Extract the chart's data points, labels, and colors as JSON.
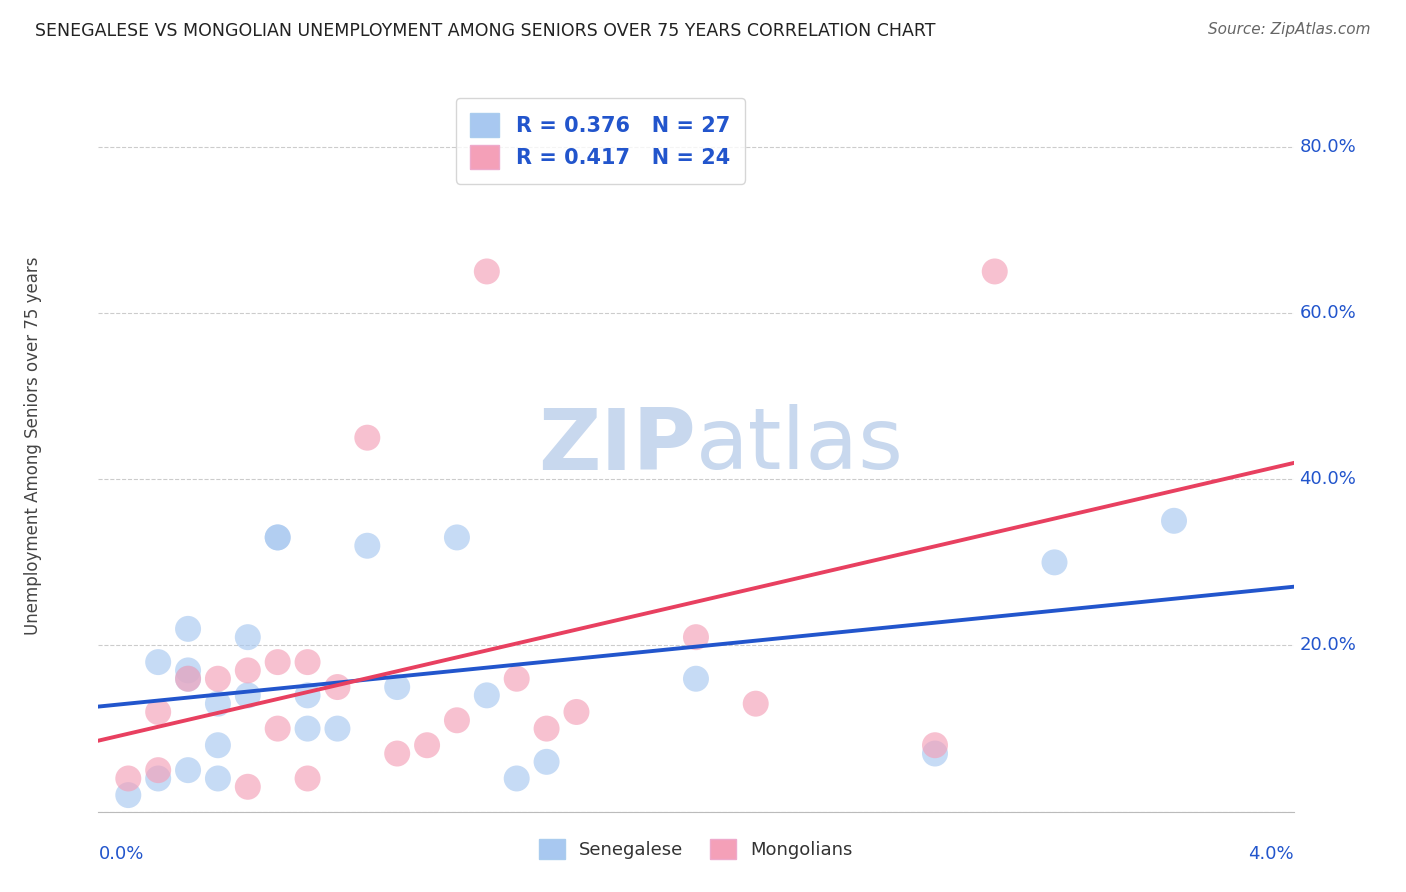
{
  "title": "SENEGALESE VS MONGOLIAN UNEMPLOYMENT AMONG SENIORS OVER 75 YEARS CORRELATION CHART",
  "source": "Source: ZipAtlas.com",
  "ylabel": "Unemployment Among Seniors over 75 years",
  "y_ticks": [
    0.0,
    0.2,
    0.4,
    0.6,
    0.8
  ],
  "y_tick_labels": [
    "",
    "20.0%",
    "40.0%",
    "60.0%",
    "80.0%"
  ],
  "x_range": [
    0.0,
    0.04
  ],
  "y_range": [
    0.0,
    0.88
  ],
  "senegalese_R": 0.376,
  "senegalese_N": 27,
  "mongolian_R": 0.417,
  "mongolian_N": 24,
  "senegalese_color": "#a8c8f0",
  "mongolian_color": "#f4a0b8",
  "senegalese_line_color": "#2255cc",
  "mongolian_line_color": "#e84060",
  "watermark_zip_color": "#c8d8ee",
  "watermark_atlas_color": "#c8d8ee",
  "legend_color": "#2255cc",
  "senegalese_x": [
    0.001,
    0.002,
    0.002,
    0.003,
    0.003,
    0.003,
    0.003,
    0.004,
    0.004,
    0.004,
    0.005,
    0.005,
    0.006,
    0.006,
    0.007,
    0.007,
    0.008,
    0.009,
    0.01,
    0.012,
    0.013,
    0.014,
    0.015,
    0.02,
    0.028,
    0.032,
    0.036
  ],
  "senegalese_y": [
    0.02,
    0.18,
    0.04,
    0.17,
    0.16,
    0.22,
    0.05,
    0.13,
    0.08,
    0.04,
    0.21,
    0.14,
    0.33,
    0.33,
    0.14,
    0.1,
    0.1,
    0.32,
    0.15,
    0.33,
    0.14,
    0.04,
    0.06,
    0.16,
    0.07,
    0.3,
    0.35
  ],
  "mongolian_x": [
    0.001,
    0.002,
    0.002,
    0.003,
    0.004,
    0.005,
    0.005,
    0.006,
    0.006,
    0.007,
    0.007,
    0.008,
    0.009,
    0.01,
    0.011,
    0.012,
    0.013,
    0.014,
    0.015,
    0.016,
    0.02,
    0.022,
    0.028,
    0.03
  ],
  "mongolian_y": [
    0.04,
    0.12,
    0.05,
    0.16,
    0.16,
    0.17,
    0.03,
    0.18,
    0.1,
    0.18,
    0.04,
    0.15,
    0.45,
    0.07,
    0.08,
    0.11,
    0.65,
    0.16,
    0.1,
    0.12,
    0.21,
    0.13,
    0.08,
    0.65
  ]
}
